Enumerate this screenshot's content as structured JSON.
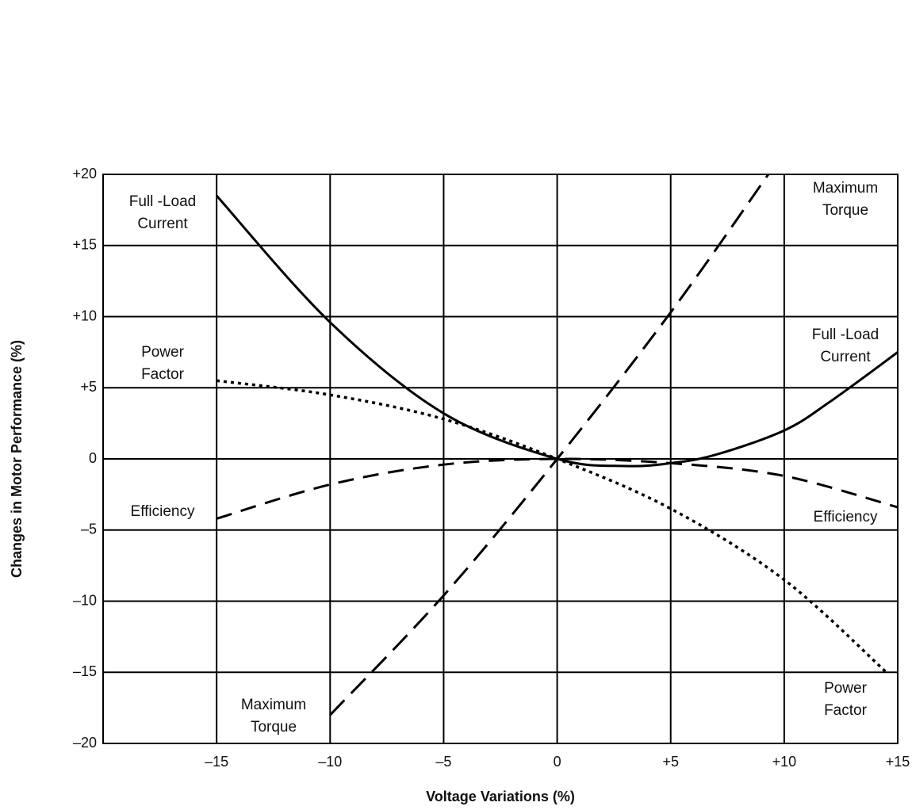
{
  "chart_data": {
    "type": "line",
    "xlabel": "Voltage Variations (%)",
    "ylabel": "Changes in Motor Performance (%)",
    "xlim": [
      -20,
      15
    ],
    "ylim": [
      -20,
      20
    ],
    "xticks": [
      {
        "value": -15,
        "label": "–15"
      },
      {
        "value": -10,
        "label": "–10"
      },
      {
        "value": -5,
        "label": "–5"
      },
      0,
      {
        "value": 5,
        "label": "+5"
      },
      {
        "value": 10,
        "label": "+10"
      },
      {
        "value": 15,
        "label": "+15"
      }
    ],
    "yticks": [
      {
        "value": 20,
        "label": "+20"
      },
      {
        "value": 15,
        "label": "+15"
      },
      {
        "value": 10,
        "label": "+10"
      },
      {
        "value": 5,
        "label": "+5"
      },
      0,
      {
        "value": -5,
        "label": "–5"
      },
      {
        "value": -10,
        "label": "–10"
      },
      {
        "value": -15,
        "label": "–15"
      },
      {
        "value": -20,
        "label": "–20"
      }
    ],
    "grid": true,
    "series": [
      {
        "color": "#000000",
        "dash": "solid",
        "x": [
          -15,
          -10,
          -5,
          0,
          3,
          5,
          7,
          10,
          12,
          15
        ],
        "values": [
          18.5,
          9.6,
          3.2,
          0,
          -0.5,
          -0.3,
          0.3,
          2,
          4,
          7.5
        ]
      },
      {
        "color": "#000000",
        "dash": "long",
        "x": [
          -10,
          -5,
          0,
          5,
          9.3
        ],
        "values": [
          -18,
          -9.6,
          0,
          10.3,
          20
        ]
      },
      {
        "color": "#000000",
        "dash": "medium",
        "x": [
          -15,
          -10,
          -5,
          0,
          5,
          10,
          15
        ],
        "values": [
          -4.2,
          -1.8,
          -0.4,
          0,
          -0.3,
          -1.2,
          -3.4
        ]
      },
      {
        "color": "#000000",
        "dash": "dotted",
        "x": [
          -15,
          -10,
          -5,
          0,
          5,
          10,
          14.5
        ],
        "values": [
          5.5,
          4.5,
          2.8,
          0,
          -3.5,
          -8.5,
          -15
        ]
      }
    ],
    "annotations": [
      {
        "lines": [
          "Full -Load",
          "Current"
        ]
      },
      {
        "lines": [
          "Maximum",
          "Torque"
        ]
      },
      {
        "lines": [
          "Power",
          "Factor"
        ]
      },
      {
        "lines": [
          "Full -Load",
          "Current"
        ]
      },
      {
        "lines": [
          "Efficiency"
        ]
      },
      {
        "lines": [
          "Efficiency"
        ]
      },
      {
        "lines": [
          "Maximum",
          "Torque"
        ]
      },
      {
        "lines": [
          "Power",
          "Factor"
        ]
      }
    ]
  }
}
